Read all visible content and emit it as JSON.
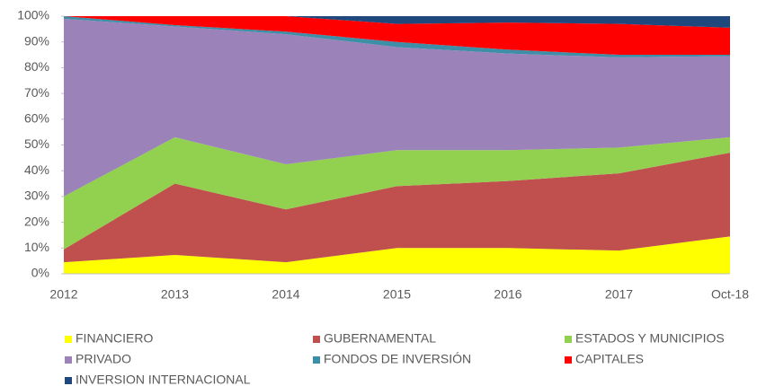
{
  "chart_data": {
    "type": "stacked_area",
    "categories": [
      "2012",
      "2013",
      "2014",
      "2015",
      "2016",
      "2017",
      "Oct-18"
    ],
    "series": [
      {
        "name": "FINANCIERO",
        "color": "#ffff00",
        "values": [
          4.5,
          7.3,
          4.5,
          10,
          10,
          9,
          14.5
        ]
      },
      {
        "name": "GUBERNAMENTAL",
        "color": "#c0504d",
        "values": [
          5,
          27.7,
          20.5,
          24,
          26,
          30,
          32.5
        ]
      },
      {
        "name": "ESTADOS Y MUNICIPIOS",
        "color": "#92d050",
        "values": [
          20.5,
          18,
          17.5,
          14,
          12,
          10,
          6
        ]
      },
      {
        "name": "PRIVADO",
        "color": "#9b82b9",
        "values": [
          69,
          43,
          50.5,
          40,
          37.5,
          35,
          31.5
        ]
      },
      {
        "name": "FONDOS DE INVERSIÓN",
        "color": "#3d8ea6",
        "values": [
          1,
          0.5,
          1,
          2,
          1.5,
          1,
          0.5
        ]
      },
      {
        "name": "CAPITALES",
        "color": "#ff0000",
        "values": [
          0,
          3.5,
          6,
          7,
          10.5,
          12,
          10.5
        ]
      },
      {
        "name": "INVERSION INTERNACIONAL",
        "color": "#1f497d",
        "values": [
          0,
          0,
          0,
          3,
          2.5,
          3,
          4.5
        ]
      }
    ],
    "ylim": [
      0,
      100
    ],
    "yticks": [
      {
        "value": 0,
        "label": "0%"
      },
      {
        "value": 10,
        "label": "10%"
      },
      {
        "value": 20,
        "label": "20%"
      },
      {
        "value": 30,
        "label": "30%"
      },
      {
        "value": 40,
        "label": "40%"
      },
      {
        "value": 50,
        "label": "50%"
      },
      {
        "value": 60,
        "label": "60%"
      },
      {
        "value": 70,
        "label": "70%"
      },
      {
        "value": 80,
        "label": "80%"
      },
      {
        "value": 90,
        "label": "90%"
      },
      {
        "value": 100,
        "label": "100%"
      }
    ],
    "grid": false,
    "legend": "bottom"
  }
}
